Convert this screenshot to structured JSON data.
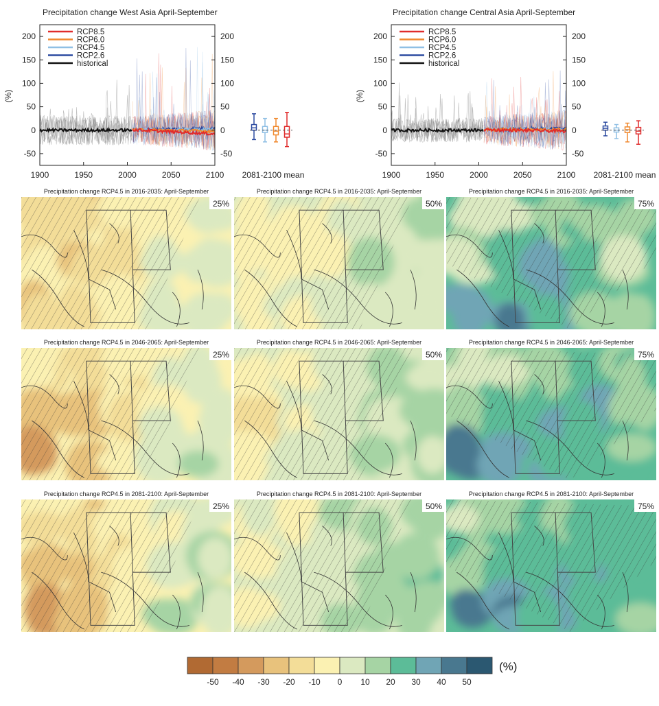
{
  "chart_data": [
    {
      "type": "line",
      "title": "Precipitation change West Asia April-September",
      "ylabel": "(%)",
      "xlim": [
        1900,
        2100
      ],
      "ylim": [
        -75,
        225
      ],
      "x_ticks": [
        "1900",
        "1950",
        "2000",
        "2050",
        "2100"
      ],
      "y_ticks_left": [
        "200",
        "150",
        "100",
        "50",
        "0",
        "-50"
      ],
      "y_ticks_right": [
        "200",
        "150",
        "100",
        "50",
        "0",
        "-50"
      ],
      "legend": [
        "RCP8.5",
        "RCP6.0",
        "RCP4.5",
        "RCP2.6",
        "historical"
      ],
      "legend_position": "top-left",
      "series": [
        {
          "name": "historical",
          "x": [
            1900,
            2005
          ],
          "y": [
            0,
            0
          ]
        },
        {
          "name": "RCP2.6",
          "x": [
            2006,
            2100
          ],
          "y": [
            1,
            4
          ]
        },
        {
          "name": "RCP4.5",
          "x": [
            2006,
            2100
          ],
          "y": [
            1,
            1
          ]
        },
        {
          "name": "RCP6.0",
          "x": [
            2006,
            2100
          ],
          "y": [
            1,
            -2
          ]
        },
        {
          "name": "RCP8.5",
          "x": [
            2006,
            2100
          ],
          "y": [
            1,
            -8
          ]
        }
      ],
      "box_label": "2081-2100 mean",
      "boxes": [
        {
          "name": "RCP2.6",
          "min": -20,
          "q1": 0,
          "median": 5,
          "q3": 12,
          "max": 35
        },
        {
          "name": "RCP4.5",
          "min": -25,
          "q1": -5,
          "median": 0,
          "q3": 8,
          "max": 25
        },
        {
          "name": "RCP6.0",
          "min": -25,
          "q1": -10,
          "median": -2,
          "q3": 8,
          "max": 25
        },
        {
          "name": "RCP8.5",
          "min": -35,
          "q1": -15,
          "median": -8,
          "q3": 8,
          "max": 38
        }
      ]
    },
    {
      "type": "line",
      "title": "Precipitation change Central Asia April-September",
      "ylabel": "(%)",
      "xlim": [
        1900,
        2100
      ],
      "ylim": [
        -75,
        225
      ],
      "x_ticks": [
        "1900",
        "1950",
        "2000",
        "2050",
        "2100"
      ],
      "y_ticks_left": [
        "200",
        "150",
        "100",
        "50",
        "0",
        "-50"
      ],
      "y_ticks_right": [
        "200",
        "150",
        "100",
        "50",
        "0",
        "-50"
      ],
      "legend": [
        "RCP8.5",
        "RCP6.0",
        "RCP4.5",
        "RCP2.6",
        "historical"
      ],
      "legend_position": "top-left",
      "series": [
        {
          "name": "historical",
          "x": [
            1900,
            2005
          ],
          "y": [
            0,
            0
          ]
        },
        {
          "name": "RCP2.6",
          "x": [
            2006,
            2100
          ],
          "y": [
            1,
            4
          ]
        },
        {
          "name": "RCP4.5",
          "x": [
            2006,
            2100
          ],
          "y": [
            1,
            1
          ]
        },
        {
          "name": "RCP6.0",
          "x": [
            2006,
            2100
          ],
          "y": [
            1,
            1
          ]
        },
        {
          "name": "RCP8.5",
          "x": [
            2006,
            2100
          ],
          "y": [
            1,
            -2
          ]
        }
      ],
      "box_label": "2081-2100 mean",
      "boxes": [
        {
          "name": "RCP2.6",
          "min": -12,
          "q1": 0,
          "median": 4,
          "q3": 9,
          "max": 17
        },
        {
          "name": "RCP4.5",
          "min": -18,
          "q1": -4,
          "median": 0,
          "q3": 5,
          "max": 12
        },
        {
          "name": "RCP6.0",
          "min": -25,
          "q1": -5,
          "median": 1,
          "q3": 7,
          "max": 15
        },
        {
          "name": "RCP8.5",
          "min": -30,
          "q1": -8,
          "median": -2,
          "q3": 6,
          "max": 20
        }
      ]
    },
    {
      "type": "heatmap",
      "panel_grid": "3x3",
      "rows": [
        {
          "title": "Precipitation change RCP4.5 in 2016-2035: April-September",
          "values_pct": [
            [
              -15,
              -22,
              -8,
              -5,
              5
            ],
            [
              -12,
              -20,
              -10,
              -3,
              5
            ],
            [
              -18,
              -15,
              -5,
              0,
              5
            ]
          ],
          "values_50": [
            [
              -5,
              -8,
              2,
              5,
              10
            ],
            [
              -3,
              -5,
              2,
              8,
              10
            ],
            [
              -5,
              0,
              5,
              8,
              8
            ]
          ],
          "values_75": [
            [
              5,
              8,
              15,
              22,
              15
            ],
            [
              10,
              25,
              38,
              20,
              12
            ],
            [
              35,
              40,
              30,
              18,
              12
            ]
          ]
        },
        {
          "title": "Precipitation change RCP4.5 in 2046-2065: April-September",
          "values_pct": [
            [
              -10,
              -15,
              -8,
              0,
              5
            ],
            [
              -25,
              -22,
              -12,
              3,
              8
            ],
            [
              -28,
              -20,
              -5,
              5,
              8
            ]
          ],
          "values_50": [
            [
              -3,
              -5,
              5,
              8,
              10
            ],
            [
              -8,
              0,
              5,
              10,
              12
            ],
            [
              -5,
              5,
              8,
              10,
              10
            ]
          ],
          "values_75": [
            [
              10,
              12,
              15,
              18,
              20
            ],
            [
              15,
              22,
              28,
              30,
              20
            ],
            [
              45,
              35,
              28,
              25,
              20
            ]
          ]
        },
        {
          "title": "Precipitation change RCP4.5 in 2081-2100: April-September",
          "values_pct": [
            [
              -10,
              -20,
              -8,
              2,
              5
            ],
            [
              -25,
              -20,
              -10,
              5,
              10
            ],
            [
              -30,
              -22,
              -5,
              8,
              10
            ]
          ],
          "values_50": [
            [
              -3,
              -5,
              8,
              10,
              15
            ],
            [
              -8,
              0,
              10,
              15,
              18
            ],
            [
              -5,
              5,
              10,
              15,
              15
            ]
          ],
          "values_75": [
            [
              10,
              12,
              20,
              25,
              30
            ],
            [
              15,
              25,
              30,
              28,
              25
            ],
            [
              45,
              38,
              30,
              25,
              22
            ]
          ]
        }
      ],
      "columns": [
        "25%",
        "50%",
        "75%"
      ],
      "colorbar": {
        "ticks": [
          "-50",
          "-40",
          "-30",
          "-20",
          "-10",
          "0",
          "10",
          "20",
          "30",
          "40",
          "50"
        ],
        "unit": "(%)",
        "colors": [
          "#b16a33",
          "#c27c42",
          "#d49a5d",
          "#e8c27c",
          "#f3dd98",
          "#fbf1b2",
          "#dbe9c1",
          "#a6d4a4",
          "#5cbc98",
          "#70a5b5",
          "#49788f",
          "#2b5871"
        ]
      }
    }
  ]
}
